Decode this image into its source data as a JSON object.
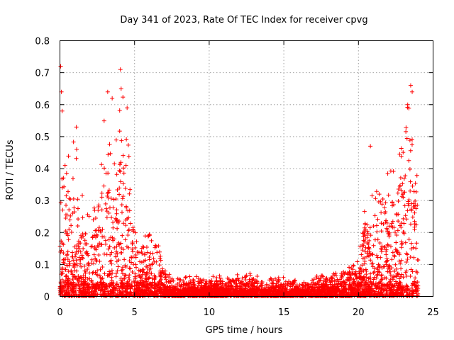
{
  "chart_data": {
    "type": "scatter",
    "title": "Day 341 of 2023, Rate Of TEC Index for receiver cpvg",
    "xlabel": "GPS time / hours",
    "ylabel": "ROTI / TECUs",
    "xlim": [
      0,
      25
    ],
    "ylim": [
      0,
      0.8
    ],
    "xticks": [
      0,
      5,
      10,
      15,
      20,
      25
    ],
    "yticks": [
      0,
      0.1,
      0.2,
      0.3,
      0.4,
      0.5,
      0.6,
      0.7,
      0.8
    ],
    "xtick_labels": [
      "0",
      "5",
      "10",
      "15",
      "20",
      "25"
    ],
    "ytick_labels": [
      "0",
      "0.1",
      "0.2",
      "0.3",
      "0.4",
      "0.5",
      "0.6",
      "0.7",
      "0.8"
    ],
    "grid": true,
    "marker": "+",
    "color": "#ff0000",
    "series": [
      {
        "name": "ROTI",
        "envelope_hours": [
          0,
          0.5,
          1,
          1.5,
          2,
          2.5,
          3,
          3.5,
          4,
          4.5,
          5,
          5.5,
          6,
          6.5,
          7,
          7.5,
          8,
          10,
          12,
          14,
          16,
          17.5,
          19,
          19.5,
          20,
          20.5,
          21,
          21.5,
          22,
          22.5,
          23,
          23.5,
          24
        ],
        "envelope_roti": [
          0.45,
          0.42,
          0.52,
          0.3,
          0.3,
          0.3,
          0.62,
          0.46,
          0.7,
          0.56,
          0.25,
          0.2,
          0.2,
          0.18,
          0.1,
          0.07,
          0.06,
          0.06,
          0.07,
          0.06,
          0.05,
          0.07,
          0.08,
          0.1,
          0.14,
          0.38,
          0.3,
          0.35,
          0.4,
          0.5,
          0.58,
          0.66,
          0.5
        ],
        "peaks": [
          {
            "x": 0.05,
            "y": 0.72
          },
          {
            "x": 0.1,
            "y": 0.64
          },
          {
            "x": 0.15,
            "y": 0.58
          },
          {
            "x": 1.1,
            "y": 0.53
          },
          {
            "x": 3.2,
            "y": 0.64
          },
          {
            "x": 3.5,
            "y": 0.62
          },
          {
            "x": 4.05,
            "y": 0.71
          },
          {
            "x": 4.1,
            "y": 0.65
          },
          {
            "x": 4.5,
            "y": 0.59
          },
          {
            "x": 20.8,
            "y": 0.47
          },
          {
            "x": 23.3,
            "y": 0.6
          },
          {
            "x": 23.5,
            "y": 0.66
          },
          {
            "x": 23.6,
            "y": 0.64
          }
        ]
      }
    ]
  }
}
